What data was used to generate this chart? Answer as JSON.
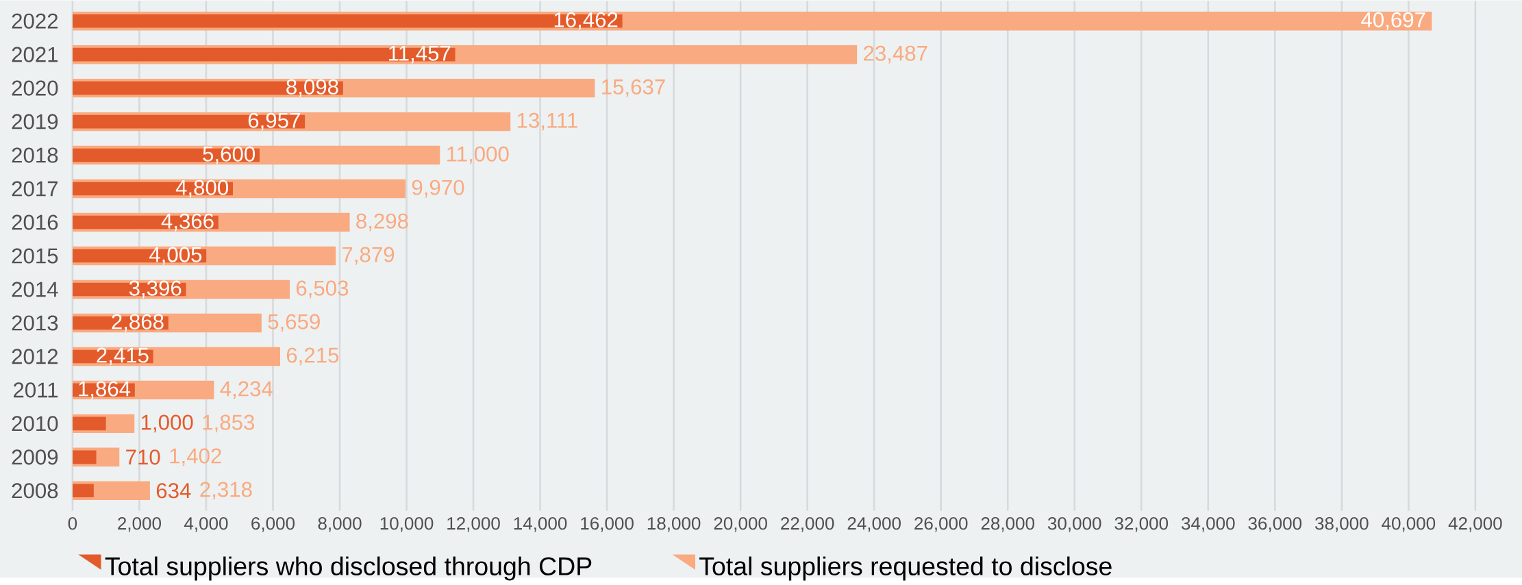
{
  "chart_data": {
    "type": "bar",
    "orientation": "horizontal",
    "categories": [
      "2022",
      "2021",
      "2020",
      "2019",
      "2018",
      "2017",
      "2016",
      "2015",
      "2014",
      "2013",
      "2012",
      "2011",
      "2010",
      "2009",
      "2008"
    ],
    "series": [
      {
        "name": "Total suppliers who disclosed through CDP",
        "color": "#e35b2b",
        "values": [
          16462,
          11457,
          8098,
          6957,
          5600,
          4800,
          4366,
          4005,
          3396,
          2868,
          2415,
          1864,
          1000,
          710,
          634
        ]
      },
      {
        "name": "Total suppliers requested to disclose",
        "color": "#f9aa80",
        "values": [
          40697,
          23487,
          15637,
          13111,
          11000,
          9970,
          8298,
          7879,
          6503,
          5659,
          6215,
          4234,
          1853,
          1402,
          2318
        ]
      }
    ],
    "xlim": [
      0,
      42000
    ],
    "xticks": [
      0,
      {
        "value": 2000,
        "label": "2,000"
      },
      {
        "value": 4000,
        "label": "4,000"
      },
      {
        "value": 6000,
        "label": "6,000"
      },
      {
        "value": 8000,
        "label": "8,000"
      },
      {
        "value": 10000,
        "label": "10,000"
      },
      {
        "value": 12000,
        "label": "12,000"
      },
      {
        "value": 14000,
        "label": "14,000"
      },
      {
        "value": 16000,
        "label": "16,000"
      },
      {
        "value": 18000,
        "label": "18,000"
      },
      {
        "value": 20000,
        "label": "20,000"
      },
      {
        "value": 22000,
        "label": "22,000"
      },
      {
        "value": 24000,
        "label": "24,000"
      },
      {
        "value": 26000,
        "label": "26,000"
      },
      {
        "value": 28000,
        "label": "28,000"
      },
      {
        "value": 30000,
        "label": "30,000"
      },
      {
        "value": 32000,
        "label": "32,000"
      },
      {
        "value": 34000,
        "label": "34,000"
      },
      {
        "value": 36000,
        "label": "36,000"
      },
      {
        "value": 38000,
        "label": "38,000"
      },
      {
        "value": 40000,
        "label": "40,000"
      },
      {
        "value": 42000,
        "label": "42,000"
      }
    ],
    "value_labels": [
      [
        "16,462",
        "11,457",
        "8,098",
        "6,957",
        "5,600",
        "4,800",
        "4,366",
        "4,005",
        "3,396",
        "2,868",
        "2,415",
        "1,864",
        "1,000",
        "710",
        "634"
      ],
      [
        "40,697",
        "23,487",
        "15,637",
        "13,111",
        "11,000",
        "9,970",
        "8,298",
        "7,879",
        "6,503",
        "5,659",
        "6,215",
        "4,234",
        "1,853",
        "1,402",
        "2,318"
      ]
    ],
    "grid": "x",
    "legend": "bottom"
  }
}
